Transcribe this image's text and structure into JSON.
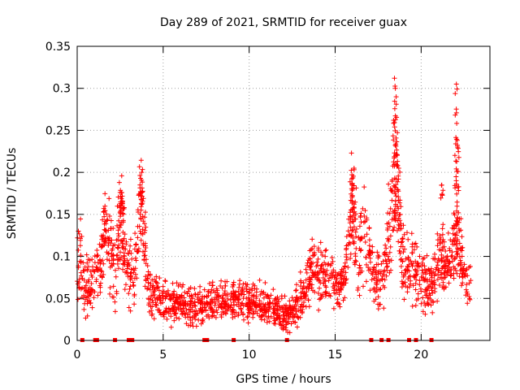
{
  "chart_data": {
    "type": "scatter",
    "title": "Day 289 of 2021, SRMTID for receiver guax",
    "xlabel": "GPS time / hours",
    "ylabel": "SRMTID / TECUs",
    "xlim": [
      0,
      24
    ],
    "ylim": [
      0,
      0.35
    ],
    "xticks": [
      0,
      5,
      10,
      15,
      20
    ],
    "xtick_labels": [
      "0",
      "5",
      "10",
      "15",
      "20"
    ],
    "yticks": [
      0,
      0.05,
      0.1,
      0.15,
      0.2,
      0.25,
      0.3,
      0.35
    ],
    "ytick_labels": [
      "0",
      "0.05",
      "0.1",
      "0.15",
      "0.2",
      "0.25",
      "0.3",
      "0.35"
    ],
    "grid": true,
    "marker": "+",
    "marker_color": "#ff0000",
    "gap_marker_color": "#ff0000",
    "gap_times_hours": [
      0.3,
      1.05,
      1.15,
      2.2,
      3.0,
      3.2,
      7.4,
      7.55,
      9.1,
      12.2,
      17.1,
      17.7,
      18.1,
      19.3,
      19.7,
      20.6
    ],
    "envelope": [
      [
        0.0,
        0.09,
        0.045
      ],
      [
        0.2,
        0.1,
        0.05
      ],
      [
        0.5,
        0.06,
        0.03
      ],
      [
        0.9,
        0.07,
        0.035
      ],
      [
        1.3,
        0.085,
        0.04
      ],
      [
        1.6,
        0.125,
        0.05
      ],
      [
        1.9,
        0.11,
        0.045
      ],
      [
        2.2,
        0.08,
        0.04
      ],
      [
        2.5,
        0.16,
        0.05
      ],
      [
        2.9,
        0.09,
        0.04
      ],
      [
        3.3,
        0.07,
        0.035
      ],
      [
        3.7,
        0.17,
        0.05
      ],
      [
        4.2,
        0.055,
        0.03
      ],
      [
        5.0,
        0.045,
        0.022
      ],
      [
        6.0,
        0.042,
        0.02
      ],
      [
        7.0,
        0.04,
        0.02
      ],
      [
        8.0,
        0.045,
        0.02
      ],
      [
        9.0,
        0.048,
        0.022
      ],
      [
        10.0,
        0.045,
        0.02
      ],
      [
        11.0,
        0.042,
        0.02
      ],
      [
        11.5,
        0.035,
        0.018
      ],
      [
        12.0,
        0.03,
        0.015
      ],
      [
        12.5,
        0.035,
        0.018
      ],
      [
        13.0,
        0.05,
        0.025
      ],
      [
        13.7,
        0.085,
        0.03
      ],
      [
        14.3,
        0.075,
        0.03
      ],
      [
        15.0,
        0.065,
        0.025
      ],
      [
        15.5,
        0.07,
        0.025
      ],
      [
        16.0,
        0.16,
        0.05
      ],
      [
        16.4,
        0.1,
        0.04
      ],
      [
        16.8,
        0.13,
        0.05
      ],
      [
        17.2,
        0.075,
        0.03
      ],
      [
        17.7,
        0.07,
        0.03
      ],
      [
        18.3,
        0.15,
        0.06
      ],
      [
        18.5,
        0.23,
        0.06
      ],
      [
        18.9,
        0.09,
        0.035
      ],
      [
        19.4,
        0.1,
        0.04
      ],
      [
        19.9,
        0.075,
        0.03
      ],
      [
        20.5,
        0.06,
        0.03
      ],
      [
        21.0,
        0.1,
        0.04
      ],
      [
        21.5,
        0.085,
        0.03
      ],
      [
        22.0,
        0.12,
        0.05
      ],
      [
        22.5,
        0.08,
        0.03
      ],
      [
        22.9,
        0.06,
        0.025
      ]
    ],
    "peaks": [
      [
        2.45,
        0.188
      ],
      [
        2.6,
        0.176
      ],
      [
        3.75,
        0.2
      ],
      [
        15.95,
        0.223
      ],
      [
        18.45,
        0.312
      ],
      [
        18.5,
        0.3
      ],
      [
        18.55,
        0.29
      ],
      [
        22.05,
        0.305
      ],
      [
        22.1,
        0.238
      ],
      [
        22.12,
        0.23
      ],
      [
        16.1,
        0.205
      ],
      [
        21.2,
        0.185
      ],
      [
        1.55,
        0.157
      ],
      [
        18.7,
        0.205
      ]
    ]
  }
}
